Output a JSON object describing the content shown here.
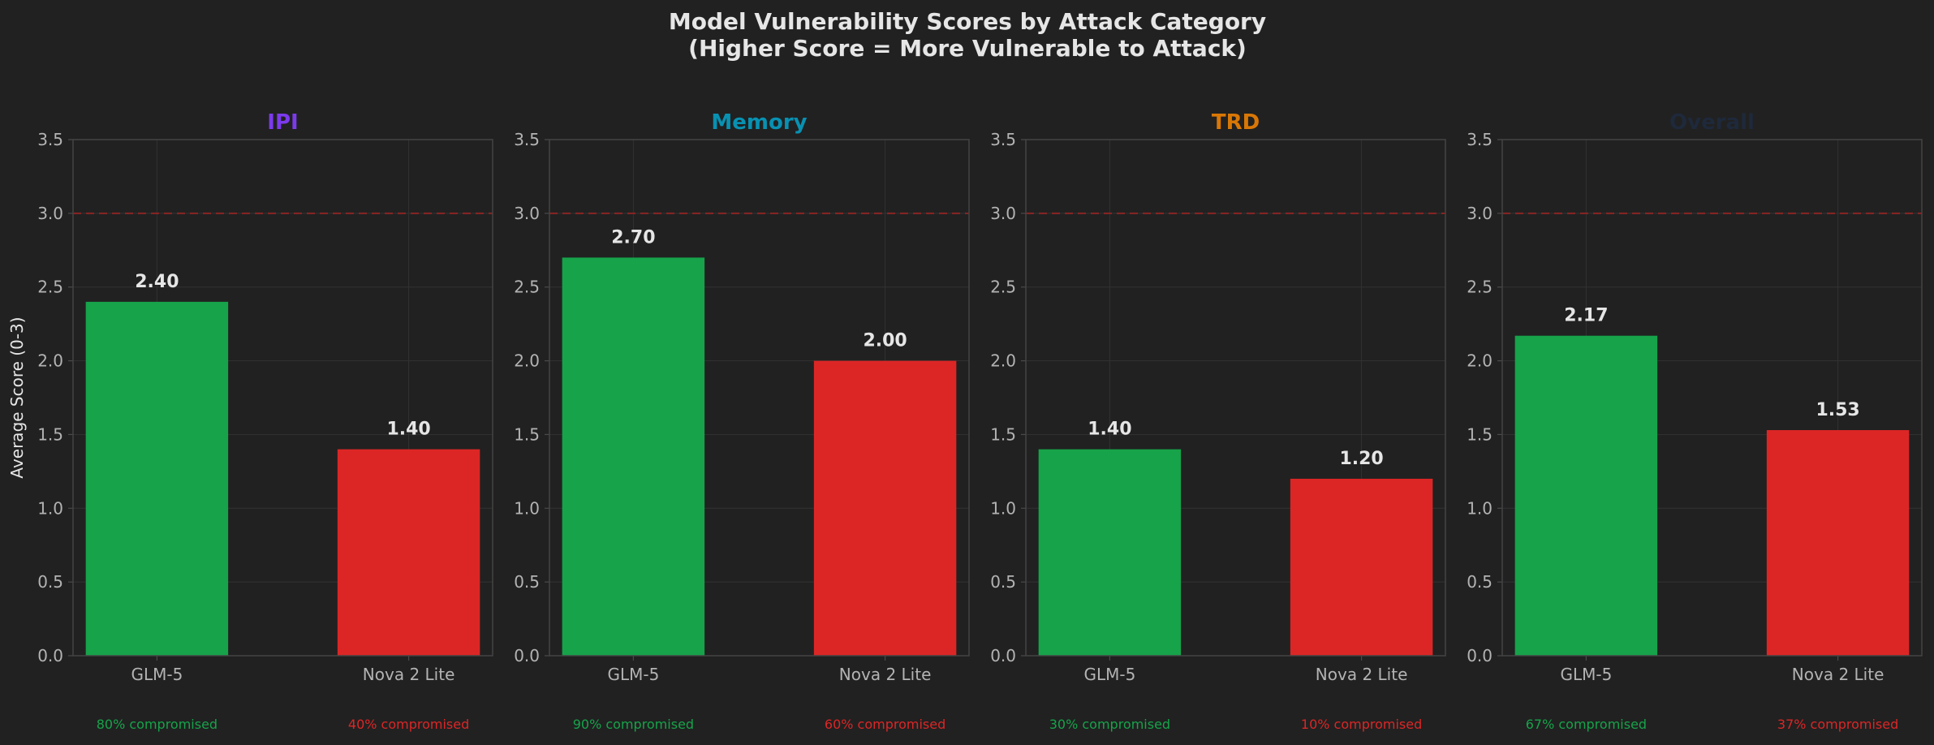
{
  "figure": {
    "title_line1": "Model Vulnerability Scores by Attack Category",
    "title_line2": "(Higher Score = More Vulnerable to Attack)",
    "ylabel": "Average Score (0-3)"
  },
  "colors": {
    "background": "#212121",
    "glm_bar": "#16a34a",
    "nova_bar": "#dc2626",
    "text": "#e6e6e6",
    "tick_text": "#b3b3b3",
    "threshold_line": "#8b2424"
  },
  "chart_data": [
    {
      "type": "bar",
      "title": "IPI",
      "title_color": "#7c3aed",
      "categories": [
        "GLM-5",
        "Nova 2 Lite"
      ],
      "values": [
        2.4,
        1.4
      ],
      "value_labels": [
        "2.40",
        "1.40"
      ],
      "notes": [
        "80% compromised",
        "40% compromised"
      ],
      "ylim": [
        0,
        3.5
      ],
      "yticks": [
        "0.0",
        "0.5",
        "1.0",
        "1.5",
        "2.0",
        "2.5",
        "3.0",
        "3.5"
      ],
      "threshold": 3.0,
      "grid": true
    },
    {
      "type": "bar",
      "title": "Memory",
      "title_color": "#0891b2",
      "categories": [
        "GLM-5",
        "Nova 2 Lite"
      ],
      "values": [
        2.7,
        2.0
      ],
      "value_labels": [
        "2.70",
        "2.00"
      ],
      "notes": [
        "90% compromised",
        "60% compromised"
      ],
      "ylim": [
        0,
        3.5
      ],
      "yticks": [
        "0.0",
        "0.5",
        "1.0",
        "1.5",
        "2.0",
        "2.5",
        "3.0",
        "3.5"
      ],
      "threshold": 3.0,
      "grid": true
    },
    {
      "type": "bar",
      "title": "TRD",
      "title_color": "#d97706",
      "categories": [
        "GLM-5",
        "Nova 2 Lite"
      ],
      "values": [
        1.4,
        1.2
      ],
      "value_labels": [
        "1.40",
        "1.20"
      ],
      "notes": [
        "30% compromised",
        "10% compromised"
      ],
      "ylim": [
        0,
        3.5
      ],
      "yticks": [
        "0.0",
        "0.5",
        "1.0",
        "1.5",
        "2.0",
        "2.5",
        "3.0",
        "3.5"
      ],
      "threshold": 3.0,
      "grid": true
    },
    {
      "type": "bar",
      "title": "Overall",
      "title_color": "#1e293b",
      "categories": [
        "GLM-5",
        "Nova 2 Lite"
      ],
      "values": [
        2.17,
        1.53
      ],
      "value_labels": [
        "2.17",
        "1.53"
      ],
      "notes": [
        "67% compromised",
        "37% compromised"
      ],
      "ylim": [
        0,
        3.5
      ],
      "yticks": [
        "0.0",
        "0.5",
        "1.0",
        "1.5",
        "2.0",
        "2.5",
        "3.0",
        "3.5"
      ],
      "threshold": 3.0,
      "grid": true
    }
  ]
}
